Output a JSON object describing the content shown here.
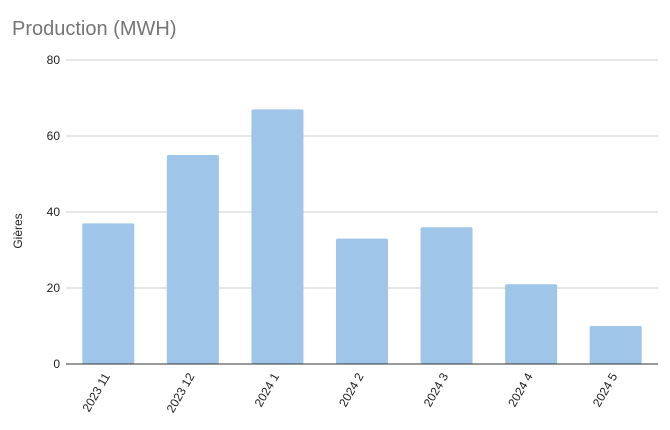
{
  "chart_data": {
    "type": "bar",
    "title": "Production (MWH)",
    "xlabel": "",
    "ylabel": "Gières",
    "categories": [
      "2023 11",
      "2023 12",
      "2024 1",
      "2024 2",
      "2024 3",
      "2024 4",
      "2024 5"
    ],
    "series": [
      {
        "values": [
          37,
          55,
          67,
          33,
          36,
          21,
          10
        ],
        "color": "#9fc5e8"
      }
    ],
    "ylim": [
      0,
      80
    ],
    "yticks": [
      0,
      20,
      40,
      60,
      80
    ],
    "grid": true,
    "legend": "none"
  },
  "colors": {
    "title": "#757575",
    "grid": "#cccccc",
    "axis": "#333333",
    "bar": "#9fc5e8"
  }
}
